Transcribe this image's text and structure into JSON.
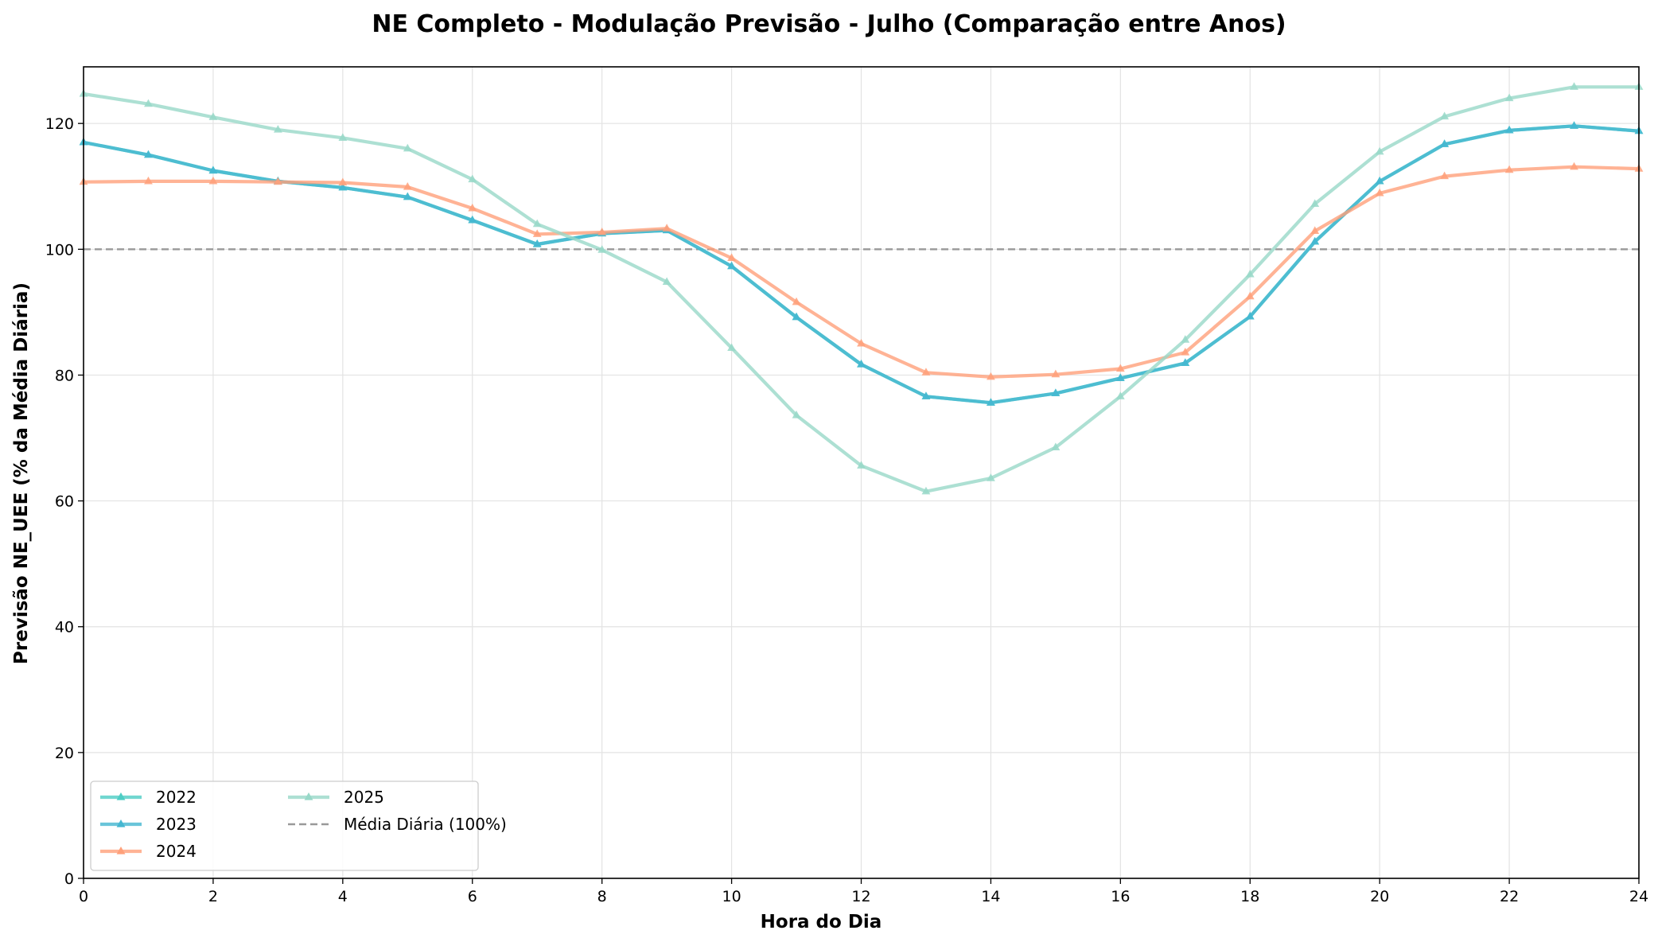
{
  "chart_data": {
    "type": "line",
    "title": "NE Completo - Modulação Previsão - Julho (Comparação entre Anos)",
    "xlabel": "Hora do Dia",
    "ylabel": "Previsão NE_UEE (% da Média Diária)",
    "xlim": [
      0,
      24
    ],
    "ylim": [
      0,
      129
    ],
    "xticks": [
      "0",
      "2",
      "4",
      "6",
      "8",
      "10",
      "12",
      "14",
      "16",
      "18",
      "20",
      "22",
      "24"
    ],
    "yticks": [
      "0",
      "20",
      "40",
      "60",
      "80",
      "100",
      "120"
    ],
    "grid": true,
    "legend_position": "lower-left",
    "x": [
      0,
      1,
      2,
      3,
      4,
      5,
      6,
      7,
      8,
      9,
      10,
      11,
      12,
      13,
      14,
      15,
      16,
      17,
      18,
      19,
      20,
      21,
      22,
      23,
      24
    ],
    "series": [
      {
        "name": "2022",
        "color": "#4ECDC4",
        "marker": "triangle",
        "values": [
          117.0,
          115.0,
          112.5,
          110.8,
          109.8,
          108.3,
          104.6,
          100.8,
          102.5,
          103.0,
          97.3,
          89.2,
          81.7,
          76.6,
          75.6,
          77.1,
          79.5,
          81.9,
          89.3,
          101.2,
          110.8,
          116.7,
          118.9,
          119.6,
          118.8
        ]
      },
      {
        "name": "2023",
        "color": "#45B7D1",
        "marker": "triangle",
        "values": [
          117.0,
          115.0,
          112.5,
          110.8,
          109.8,
          108.3,
          104.6,
          100.8,
          102.5,
          103.0,
          97.3,
          89.2,
          81.7,
          76.6,
          75.6,
          77.1,
          79.5,
          81.9,
          89.3,
          101.2,
          110.8,
          116.7,
          118.9,
          119.6,
          118.8
        ]
      },
      {
        "name": "2024",
        "color": "#FFA07A",
        "marker": "triangle",
        "values": [
          110.7,
          110.8,
          110.8,
          110.7,
          110.6,
          109.9,
          106.5,
          102.4,
          102.7,
          103.3,
          98.6,
          91.6,
          85.0,
          80.4,
          79.7,
          80.1,
          81.0,
          83.6,
          92.5,
          102.9,
          108.9,
          111.6,
          112.6,
          113.1,
          112.8
        ]
      },
      {
        "name": "2025",
        "color": "#98D8C8",
        "marker": "triangle",
        "values": [
          124.7,
          123.1,
          121.0,
          119.0,
          117.7,
          116.0,
          111.1,
          104.0,
          99.9,
          94.8,
          84.3,
          73.6,
          65.6,
          61.5,
          63.6,
          68.5,
          76.6,
          85.6,
          96.0,
          107.2,
          115.5,
          121.1,
          124.0,
          125.8,
          125.8
        ]
      }
    ],
    "reference_line": {
      "name": "Média Diária (100%)",
      "value": 100,
      "color": "#999999",
      "style": "dashed"
    }
  }
}
